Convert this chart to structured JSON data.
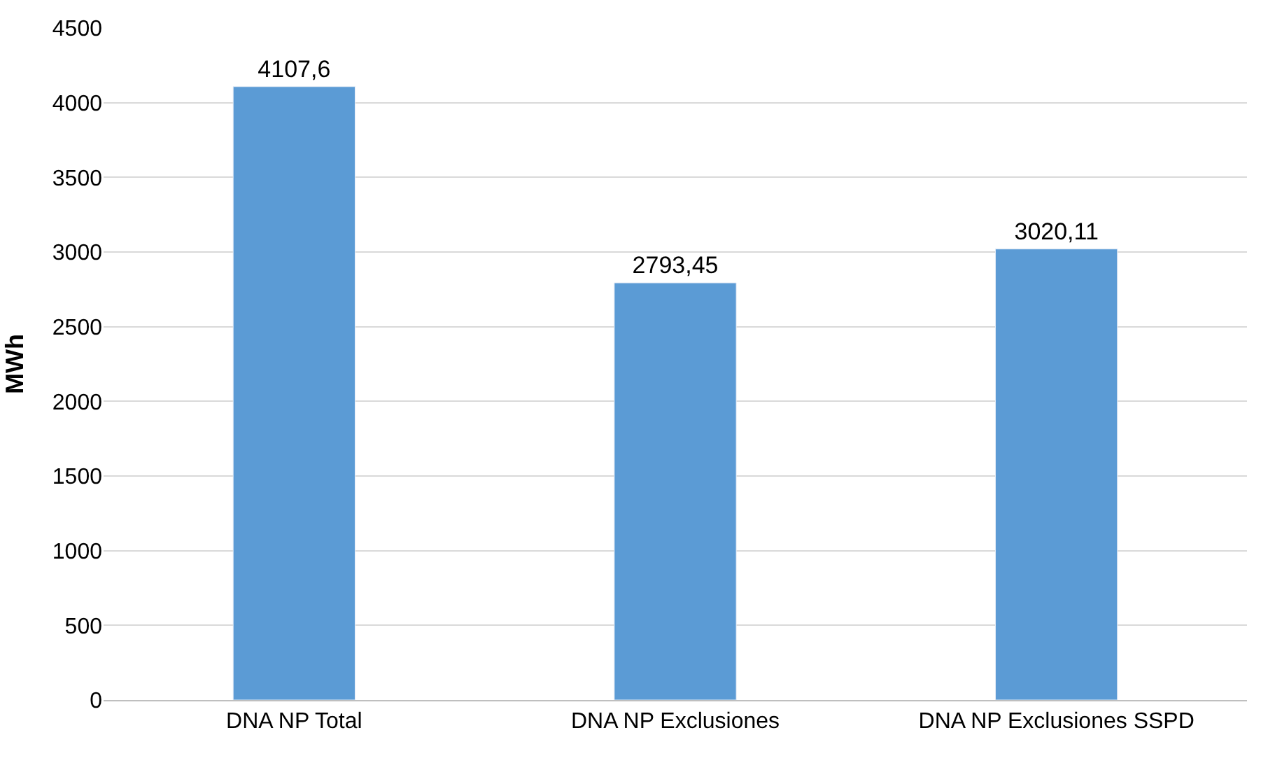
{
  "chart_data": {
    "type": "bar",
    "ylabel": "MWh",
    "categories": [
      "DNA NP Total",
      "DNA NP Exclusiones",
      "DNA NP Exclusiones SSPD"
    ],
    "values": [
      4107.6,
      2793.45,
      3020.11
    ],
    "value_labels": [
      "4107,6",
      "2793,45",
      "3020,11"
    ],
    "color": "#5b9bd5",
    "ylim": [
      0,
      4500
    ],
    "yticks": [
      0,
      500,
      1000,
      1500,
      2000,
      2500,
      3000,
      3500,
      4000,
      4500
    ],
    "grid": "y",
    "legend": false
  }
}
